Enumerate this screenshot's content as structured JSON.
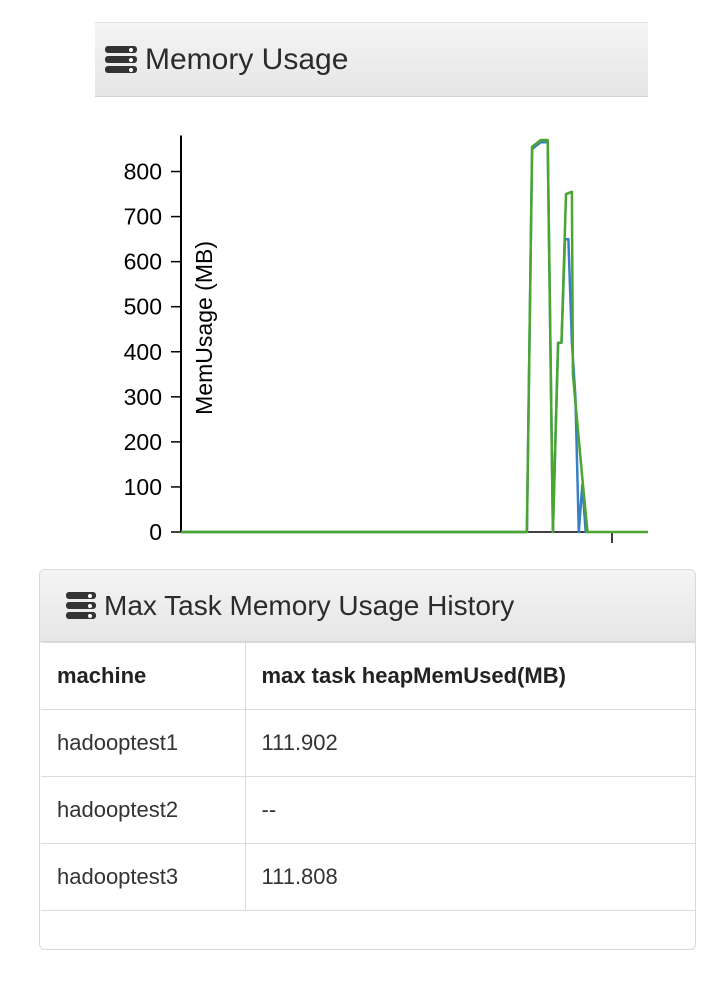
{
  "memory_panel": {
    "title": "Memory Usage",
    "icon": "database-icon"
  },
  "chart_data": {
    "type": "line",
    "title": "",
    "xlabel": "",
    "ylabel": "MemUsage (MB)",
    "ylim": [
      0,
      880
    ],
    "yticks": [
      0,
      100,
      200,
      300,
      400,
      500,
      600,
      700,
      800
    ],
    "grid": false,
    "x_tick_labels": [],
    "series": [
      {
        "color": "#3a7fc4",
        "points": [
          [
            0,
            0
          ],
          [
            100,
            0
          ],
          [
            101.5,
            850
          ],
          [
            104,
            865
          ],
          [
            106,
            865
          ],
          [
            107.5,
            0
          ],
          [
            109,
            420
          ],
          [
            110,
            420
          ],
          [
            111,
            650
          ],
          [
            112,
            650
          ],
          [
            113,
            420
          ],
          [
            114,
            300
          ],
          [
            115,
            0
          ],
          [
            116,
            105
          ],
          [
            117,
            0
          ],
          [
            118,
            0
          ]
        ]
      },
      {
        "color": "#4aa62e",
        "points": [
          [
            0,
            0
          ],
          [
            100,
            0
          ],
          [
            101.5,
            855
          ],
          [
            104,
            870
          ],
          [
            106,
            870
          ],
          [
            107.5,
            0
          ],
          [
            109,
            420
          ],
          [
            110,
            420
          ],
          [
            111.3,
            750
          ],
          [
            113,
            755
          ],
          [
            113.3,
            350
          ],
          [
            116,
            120
          ],
          [
            117.5,
            0
          ],
          [
            135,
            0
          ]
        ]
      }
    ]
  },
  "history_panel": {
    "title": "Max Task Memory Usage History",
    "icon": "database-icon",
    "columns": [
      "machine",
      "max task heapMemUsed(MB)"
    ],
    "rows": [
      [
        "hadooptest1",
        "111.902"
      ],
      [
        "hadooptest2",
        "--"
      ],
      [
        "hadooptest3",
        "111.808"
      ]
    ]
  }
}
